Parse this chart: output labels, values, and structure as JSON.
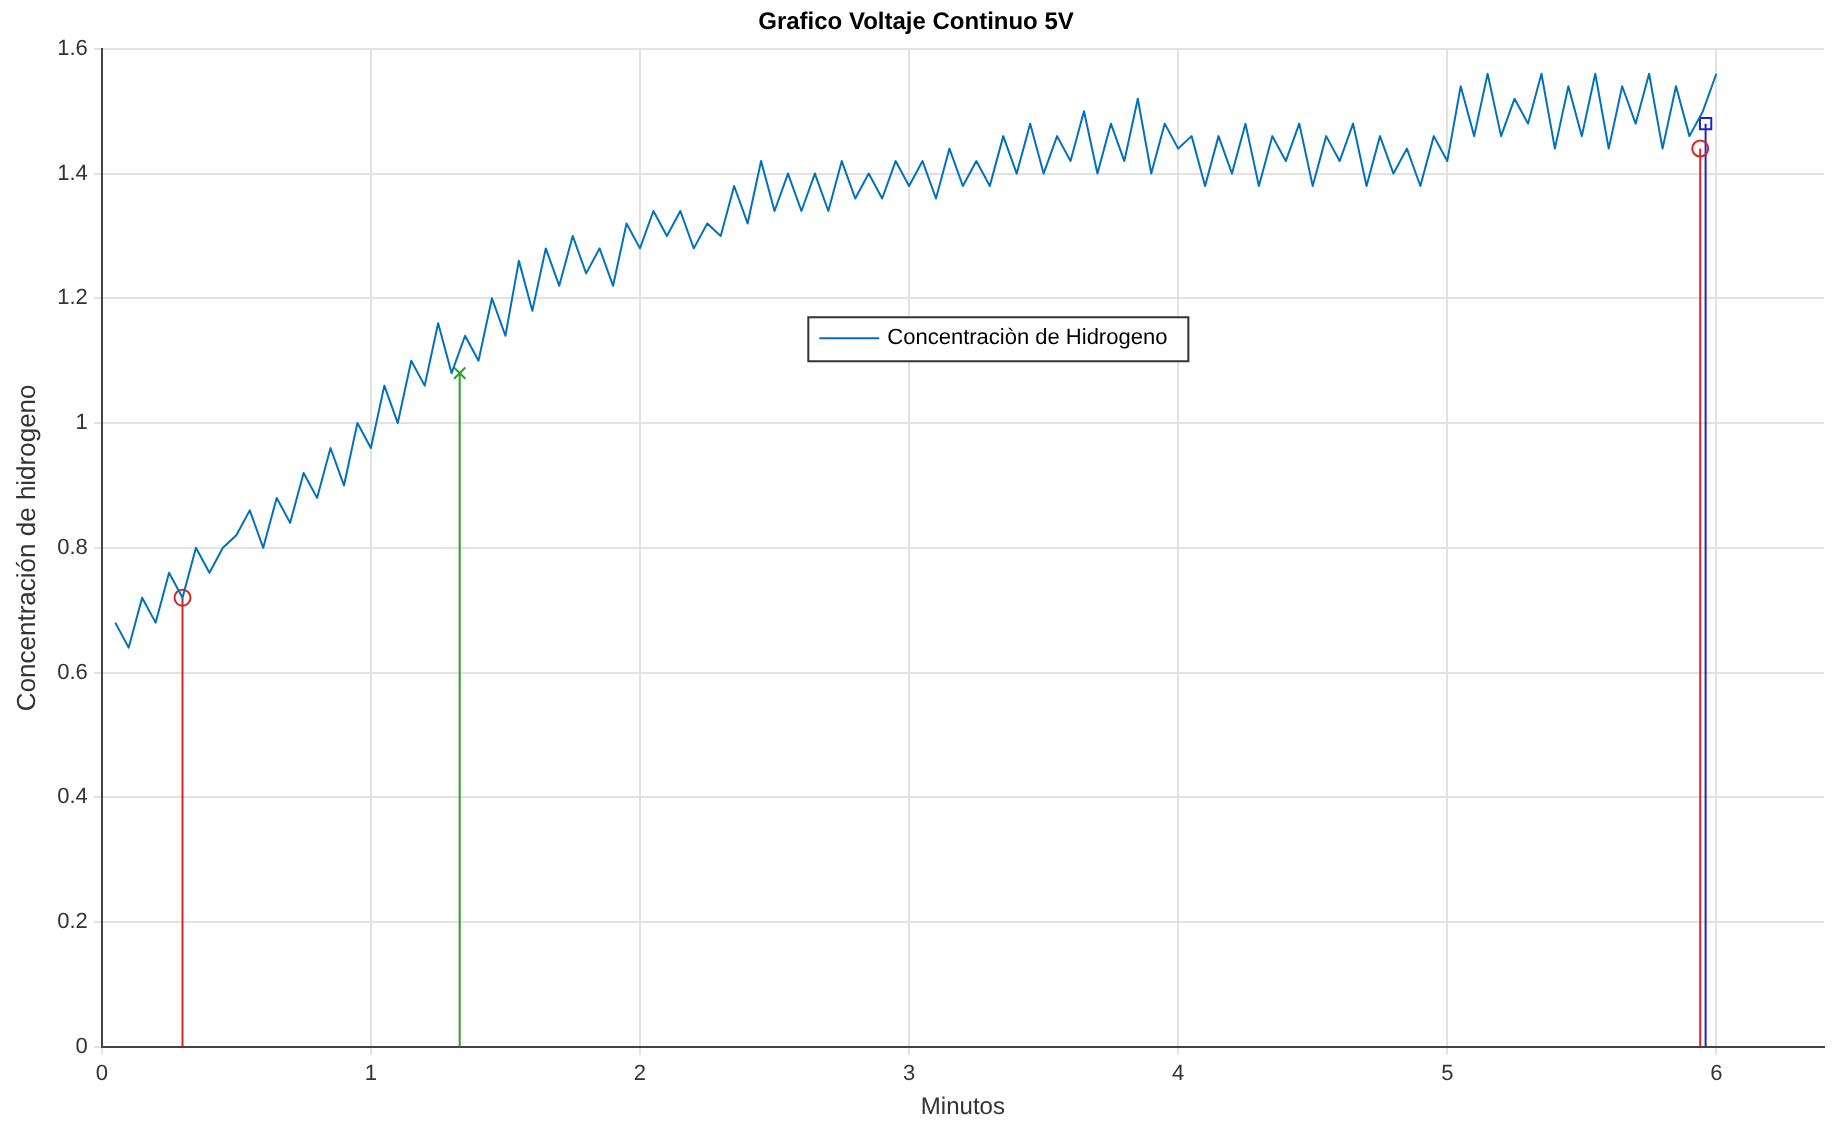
{
  "chart_data": {
    "type": "line",
    "title": "Grafico Voltaje Continuo 5V",
    "xlabel": "Minutos",
    "ylabel": "Concentración de hidrogeno",
    "xlim": [
      0,
      6.4
    ],
    "xticks": [
      0,
      1,
      2,
      3,
      4,
      5,
      6
    ],
    "ylim": [
      0,
      1.6
    ],
    "yticks": [
      0,
      0.2,
      0.4,
      0.6,
      0.8,
      1,
      1.2,
      1.4,
      1.6
    ],
    "grid": true,
    "legend": "top",
    "marker": "none",
    "line_style": "solid",
    "series": [
      {
        "name": "Concentraciòn de Hidrogeno",
        "color": "#0072bd",
        "x": [
          0.05,
          0.1,
          0.15,
          0.2,
          0.25,
          0.3,
          0.35,
          0.4,
          0.45,
          0.5,
          0.55,
          0.6,
          0.65,
          0.7,
          0.75,
          0.8,
          0.85,
          0.9,
          0.95,
          1.0,
          1.05,
          1.1,
          1.15,
          1.2,
          1.25,
          1.3,
          1.35,
          1.4,
          1.45,
          1.5,
          1.55,
          1.6,
          1.65,
          1.7,
          1.75,
          1.8,
          1.85,
          1.9,
          1.95,
          2.0,
          2.05,
          2.1,
          2.15,
          2.2,
          2.25,
          2.3,
          2.35,
          2.4,
          2.45,
          2.5,
          2.55,
          2.6,
          2.65,
          2.7,
          2.75,
          2.8,
          2.85,
          2.9,
          2.95,
          3.0,
          3.05,
          3.1,
          3.15,
          3.2,
          3.25,
          3.3,
          3.35,
          3.4,
          3.45,
          3.5,
          3.55,
          3.6,
          3.65,
          3.7,
          3.75,
          3.8,
          3.85,
          3.9,
          3.95,
          4.0,
          4.05,
          4.1,
          4.15,
          4.2,
          4.25,
          4.3,
          4.35,
          4.4,
          4.45,
          4.5,
          4.55,
          4.6,
          4.65,
          4.7,
          4.75,
          4.8,
          4.85,
          4.9,
          4.95,
          5.0,
          5.05,
          5.1,
          5.15,
          5.2,
          5.25,
          5.3,
          5.35,
          5.4,
          5.45,
          5.5,
          5.55,
          5.6,
          5.65,
          5.7,
          5.75,
          5.8,
          5.85,
          5.9,
          5.95,
          6.0
        ],
        "values": [
          0.68,
          0.64,
          0.72,
          0.68,
          0.76,
          0.72,
          0.8,
          0.76,
          0.8,
          0.82,
          0.86,
          0.8,
          0.88,
          0.84,
          0.92,
          0.88,
          0.96,
          0.9,
          1.0,
          0.96,
          1.06,
          1.0,
          1.1,
          1.06,
          1.16,
          1.08,
          1.14,
          1.1,
          1.2,
          1.14,
          1.26,
          1.18,
          1.28,
          1.22,
          1.3,
          1.24,
          1.28,
          1.22,
          1.32,
          1.28,
          1.34,
          1.3,
          1.34,
          1.28,
          1.32,
          1.3,
          1.38,
          1.32,
          1.42,
          1.34,
          1.4,
          1.34,
          1.4,
          1.34,
          1.42,
          1.36,
          1.4,
          1.36,
          1.42,
          1.38,
          1.42,
          1.36,
          1.44,
          1.38,
          1.42,
          1.38,
          1.46,
          1.4,
          1.48,
          1.4,
          1.46,
          1.42,
          1.5,
          1.4,
          1.48,
          1.42,
          1.52,
          1.4,
          1.48,
          1.44,
          1.46,
          1.38,
          1.46,
          1.4,
          1.48,
          1.38,
          1.46,
          1.42,
          1.48,
          1.38,
          1.46,
          1.42,
          1.48,
          1.38,
          1.46,
          1.4,
          1.44,
          1.38,
          1.46,
          1.42,
          1.54,
          1.46,
          1.56,
          1.46,
          1.52,
          1.48,
          1.56,
          1.44,
          1.54,
          1.46,
          1.56,
          1.44,
          1.54,
          1.48,
          1.56,
          1.44,
          1.54,
          1.46,
          1.5,
          1.56
        ]
      },
      {
        "type": "lollipop",
        "color": "#d62728",
        "marker": "circle",
        "x": [
          0.3
        ],
        "values": [
          0.72
        ]
      },
      {
        "type": "lollipop",
        "color": "#2ca02c",
        "marker": "cross",
        "x": [
          1.33
        ],
        "values": [
          1.08
        ]
      },
      {
        "type": "lollipop",
        "color": "#d62728",
        "marker": "circle",
        "x": [
          5.94
        ],
        "values": [
          1.44
        ]
      },
      {
        "type": "lollipop",
        "color": "#2020d0",
        "marker": "square",
        "x": [
          5.96
        ],
        "values": [
          1.48
        ]
      }
    ]
  }
}
